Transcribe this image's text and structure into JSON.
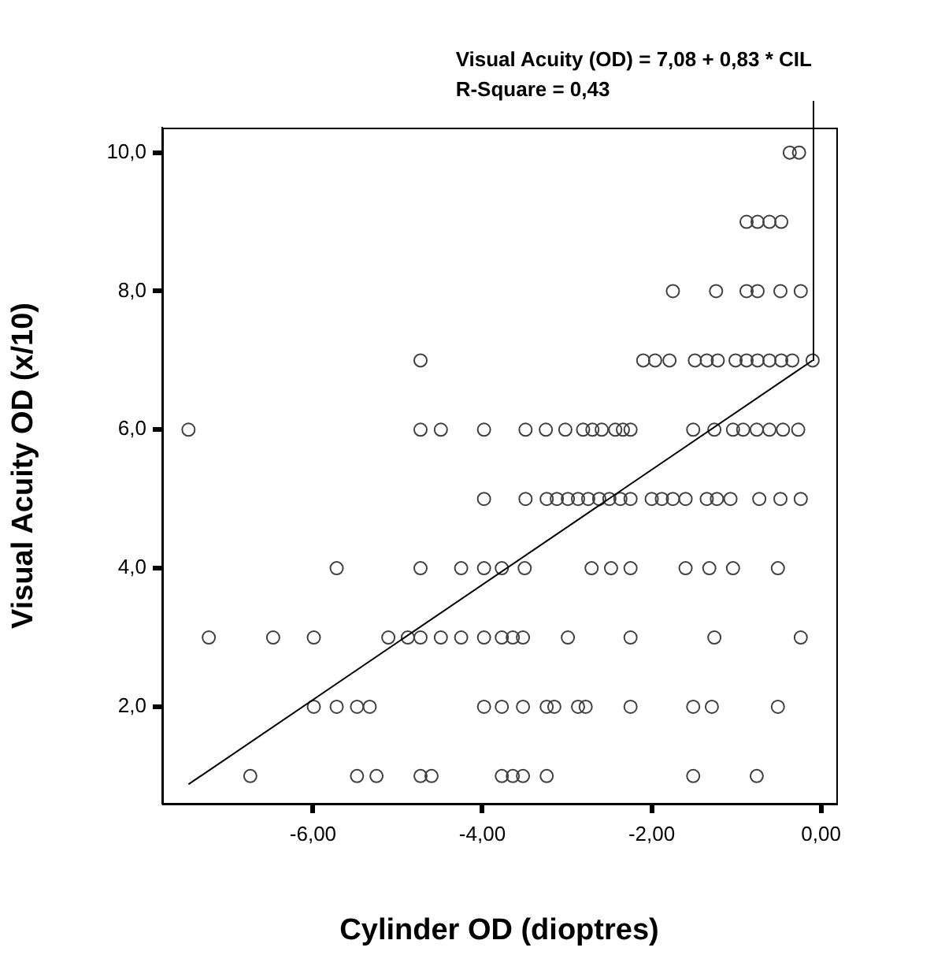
{
  "chart_data": {
    "type": "scatter",
    "xlabel": "Cylinder OD (dioptres)",
    "ylabel": "Visual Acuity OD (x/10)",
    "annotations": [
      "Visual Acuity (OD) = 7,08 + 0,83 * CIL",
      "R-Square = 0,43"
    ],
    "xlim": [
      -7.78,
      0.18
    ],
    "ylim": [
      0.6,
      10.36
    ],
    "xticks": [
      {
        "value": -6,
        "label": "-6,00"
      },
      {
        "value": -4,
        "label": "-4,00"
      },
      {
        "value": -2,
        "label": "-2,00"
      },
      {
        "value": 0,
        "label": "0,00"
      }
    ],
    "yticks": [
      {
        "value": 2,
        "label": "2,0"
      },
      {
        "value": 4,
        "label": "4,0"
      },
      {
        "value": 6,
        "label": "6,0"
      },
      {
        "value": 8,
        "label": "8,0"
      },
      {
        "value": 10,
        "label": "10,0"
      }
    ],
    "grid": false,
    "legend": false,
    "series": [
      {
        "color": "#404040",
        "marker": "circle",
        "x": [
          -0.37,
          -0.26,
          -0.88,
          -0.75,
          -0.61,
          -0.47,
          -1.75,
          -1.24,
          -0.88,
          -0.75,
          -0.48,
          -0.24,
          -4.73,
          -2.1,
          -1.96,
          -1.79,
          -1.49,
          -1.35,
          -1.22,
          -1.01,
          -0.88,
          -0.75,
          -0.61,
          -0.47,
          -0.34,
          -0.1,
          -7.47,
          -4.73,
          -4.49,
          -3.98,
          -3.49,
          -3.25,
          -3.02,
          -2.81,
          -2.7,
          -2.59,
          -2.43,
          -2.34,
          -2.25,
          -1.51,
          -1.26,
          -1.04,
          -0.92,
          -0.76,
          -0.61,
          -0.45,
          -0.27,
          -3.98,
          -3.49,
          -3.24,
          -3.12,
          -2.99,
          -2.87,
          -2.75,
          -2.62,
          -2.5,
          -2.37,
          -2.25,
          -2.0,
          -1.88,
          -1.75,
          -1.6,
          -1.35,
          -1.23,
          -1.07,
          -0.73,
          -0.48,
          -0.24,
          -5.72,
          -4.73,
          -4.25,
          -3.98,
          -3.77,
          -3.5,
          -2.71,
          -2.48,
          -2.25,
          -1.6,
          -1.32,
          -1.04,
          -0.51,
          -7.23,
          -6.47,
          -5.99,
          -5.11,
          -4.88,
          -4.73,
          -4.49,
          -4.25,
          -3.98,
          -3.77,
          -3.64,
          -3.52,
          -2.99,
          -2.25,
          -1.26,
          -0.24,
          -5.99,
          -5.72,
          -5.48,
          -5.33,
          -3.98,
          -3.77,
          -3.52,
          -3.24,
          -3.15,
          -2.87,
          -2.78,
          -2.25,
          -1.51,
          -1.29,
          -0.51,
          -6.74,
          -5.48,
          -5.25,
          -4.73,
          -4.6,
          -3.77,
          -3.64,
          -3.52,
          -3.24,
          -1.51,
          -0.76
        ],
        "values": [
          10,
          10,
          9,
          9,
          9,
          9,
          8,
          8,
          8,
          8,
          8,
          8,
          7,
          7,
          7,
          7,
          7,
          7,
          7,
          7,
          7,
          7,
          7,
          7,
          7,
          7,
          6,
          6,
          6,
          6,
          6,
          6,
          6,
          6,
          6,
          6,
          6,
          6,
          6,
          6,
          6,
          6,
          6,
          6,
          6,
          6,
          6,
          5,
          5,
          5,
          5,
          5,
          5,
          5,
          5,
          5,
          5,
          5,
          5,
          5,
          5,
          5,
          5,
          5,
          5,
          5,
          5,
          5,
          4,
          4,
          4,
          4,
          4,
          4,
          4,
          4,
          4,
          4,
          4,
          4,
          4,
          3,
          3,
          3,
          3,
          3,
          3,
          3,
          3,
          3,
          3,
          3,
          3,
          3,
          3,
          3,
          3,
          2,
          2,
          2,
          2,
          2,
          2,
          2,
          2,
          2,
          2,
          2,
          2,
          2,
          2,
          2,
          1,
          1,
          1,
          1,
          1,
          1,
          1,
          1,
          1,
          1,
          1
        ]
      },
      {
        "type": "line",
        "color": "#000000",
        "marker": "none",
        "line_style": "solid",
        "x": [
          -7.47,
          -0.1
        ],
        "values": [
          0.88,
          7.0
        ]
      }
    ]
  }
}
